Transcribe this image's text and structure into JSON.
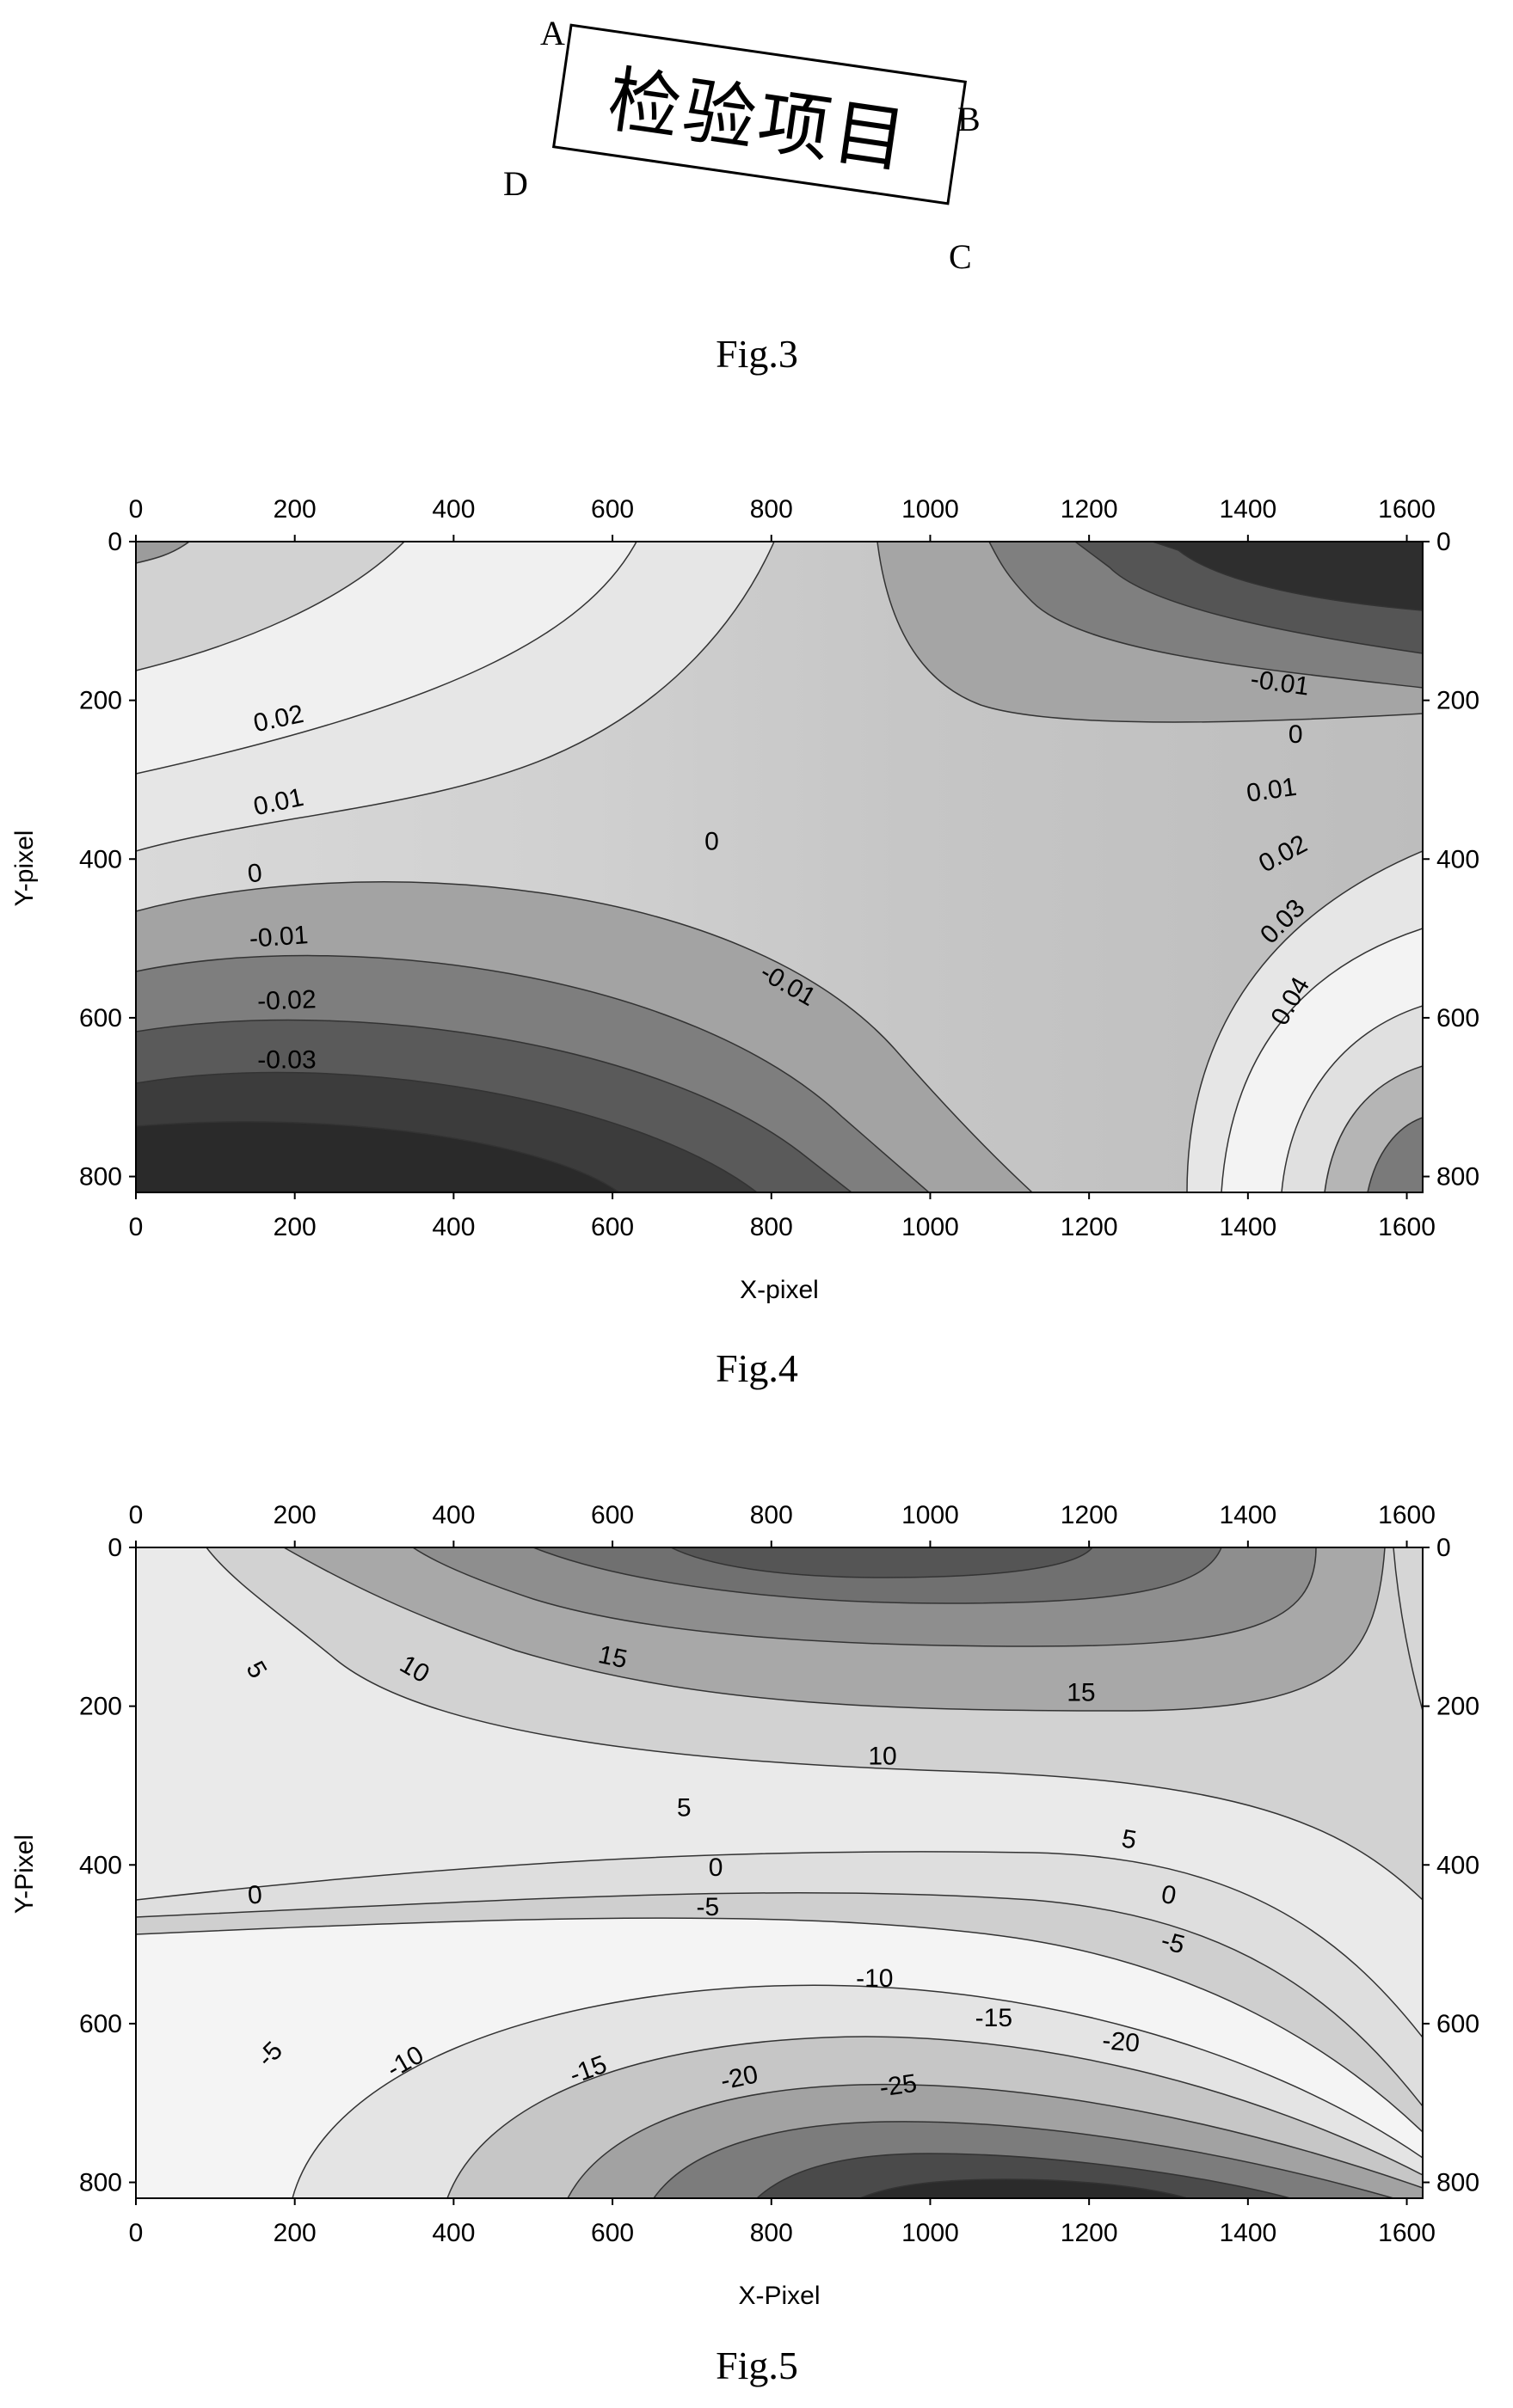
{
  "fig3": {
    "caption": "Fig.3",
    "label_text": "检验项目",
    "corners": {
      "a": "A",
      "b": "B",
      "c": "C",
      "d": "D"
    }
  },
  "fig4": {
    "caption": "Fig.4",
    "chart_data": {
      "type": "heatmap",
      "subtype": "contour",
      "xlabel": "X-pixel",
      "ylabel": "Y-pixel",
      "xlim": [
        0,
        1620
      ],
      "ylim": [
        0,
        820
      ],
      "y_inverted": true,
      "x_ticks": [
        "0",
        "200",
        "400",
        "600",
        "800",
        "1000",
        "1200",
        "1400",
        "1600"
      ],
      "y_ticks": [
        "0",
        "200",
        "400",
        "600",
        "800"
      ],
      "contour_labels": [
        {
          "text": "0.02",
          "x": 180,
          "y": 225,
          "angle": -12
        },
        {
          "text": "0.01",
          "x": 180,
          "y": 330,
          "angle": -12
        },
        {
          "text": "0",
          "x": 150,
          "y": 420,
          "angle": -6
        },
        {
          "text": "-0.01",
          "x": 180,
          "y": 500,
          "angle": -4
        },
        {
          "text": "-0.02",
          "x": 190,
          "y": 580,
          "angle": -2
        },
        {
          "text": "-0.03",
          "x": 190,
          "y": 655,
          "angle": 0
        },
        {
          "text": "0",
          "x": 725,
          "y": 380,
          "angle": 0
        },
        {
          "text": "-0.01",
          "x": 820,
          "y": 560,
          "angle": 30
        },
        {
          "text": "-0.01",
          "x": 1440,
          "y": 180,
          "angle": 8
        },
        {
          "text": "0",
          "x": 1460,
          "y": 245,
          "angle": 0
        },
        {
          "text": "0.01",
          "x": 1430,
          "y": 315,
          "angle": -8
        },
        {
          "text": "0.02",
          "x": 1445,
          "y": 395,
          "angle": -28
        },
        {
          "text": "0.03",
          "x": 1445,
          "y": 480,
          "angle": -45
        },
        {
          "text": "0.04",
          "x": 1455,
          "y": 580,
          "angle": -60
        }
      ]
    }
  },
  "fig5": {
    "caption": "Fig.5",
    "chart_data": {
      "type": "heatmap",
      "subtype": "contour",
      "xlabel": "X-Pixel",
      "ylabel": "Y-Pixel",
      "xlim": [
        0,
        1620
      ],
      "ylim": [
        0,
        820
      ],
      "y_inverted": true,
      "x_ticks": [
        "0",
        "200",
        "400",
        "600",
        "800",
        "1000",
        "1200",
        "1400",
        "1600"
      ],
      "y_ticks": [
        "0",
        "200",
        "400",
        "600",
        "800"
      ],
      "contour_labels": [
        {
          "text": "5",
          "x": 150,
          "y": 155,
          "angle": 60
        },
        {
          "text": "10",
          "x": 350,
          "y": 155,
          "angle": 30
        },
        {
          "text": "15",
          "x": 600,
          "y": 140,
          "angle": 12
        },
        {
          "text": "15",
          "x": 1190,
          "y": 185,
          "angle": 0
        },
        {
          "text": "10",
          "x": 940,
          "y": 265,
          "angle": 0
        },
        {
          "text": "5",
          "x": 690,
          "y": 330,
          "angle": 0
        },
        {
          "text": "5",
          "x": 1250,
          "y": 370,
          "angle": 10
        },
        {
          "text": "0",
          "x": 150,
          "y": 440,
          "angle": -4
        },
        {
          "text": "0",
          "x": 730,
          "y": 405,
          "angle": 0
        },
        {
          "text": "0",
          "x": 1300,
          "y": 440,
          "angle": 10
        },
        {
          "text": "-5",
          "x": 720,
          "y": 455,
          "angle": 0
        },
        {
          "text": "-5",
          "x": 1305,
          "y": 500,
          "angle": 15
        },
        {
          "text": "-10",
          "x": 930,
          "y": 545,
          "angle": 0
        },
        {
          "text": "-15",
          "x": 1080,
          "y": 595,
          "angle": 0
        },
        {
          "text": "-20",
          "x": 1240,
          "y": 625,
          "angle": 5
        },
        {
          "text": "-5",
          "x": 170,
          "y": 640,
          "angle": -45
        },
        {
          "text": "-10",
          "x": 340,
          "y": 650,
          "angle": -30
        },
        {
          "text": "-15",
          "x": 570,
          "y": 660,
          "angle": -20
        },
        {
          "text": "-20",
          "x": 760,
          "y": 670,
          "angle": -12
        },
        {
          "text": "-25",
          "x": 960,
          "y": 680,
          "angle": -8
        }
      ]
    }
  }
}
